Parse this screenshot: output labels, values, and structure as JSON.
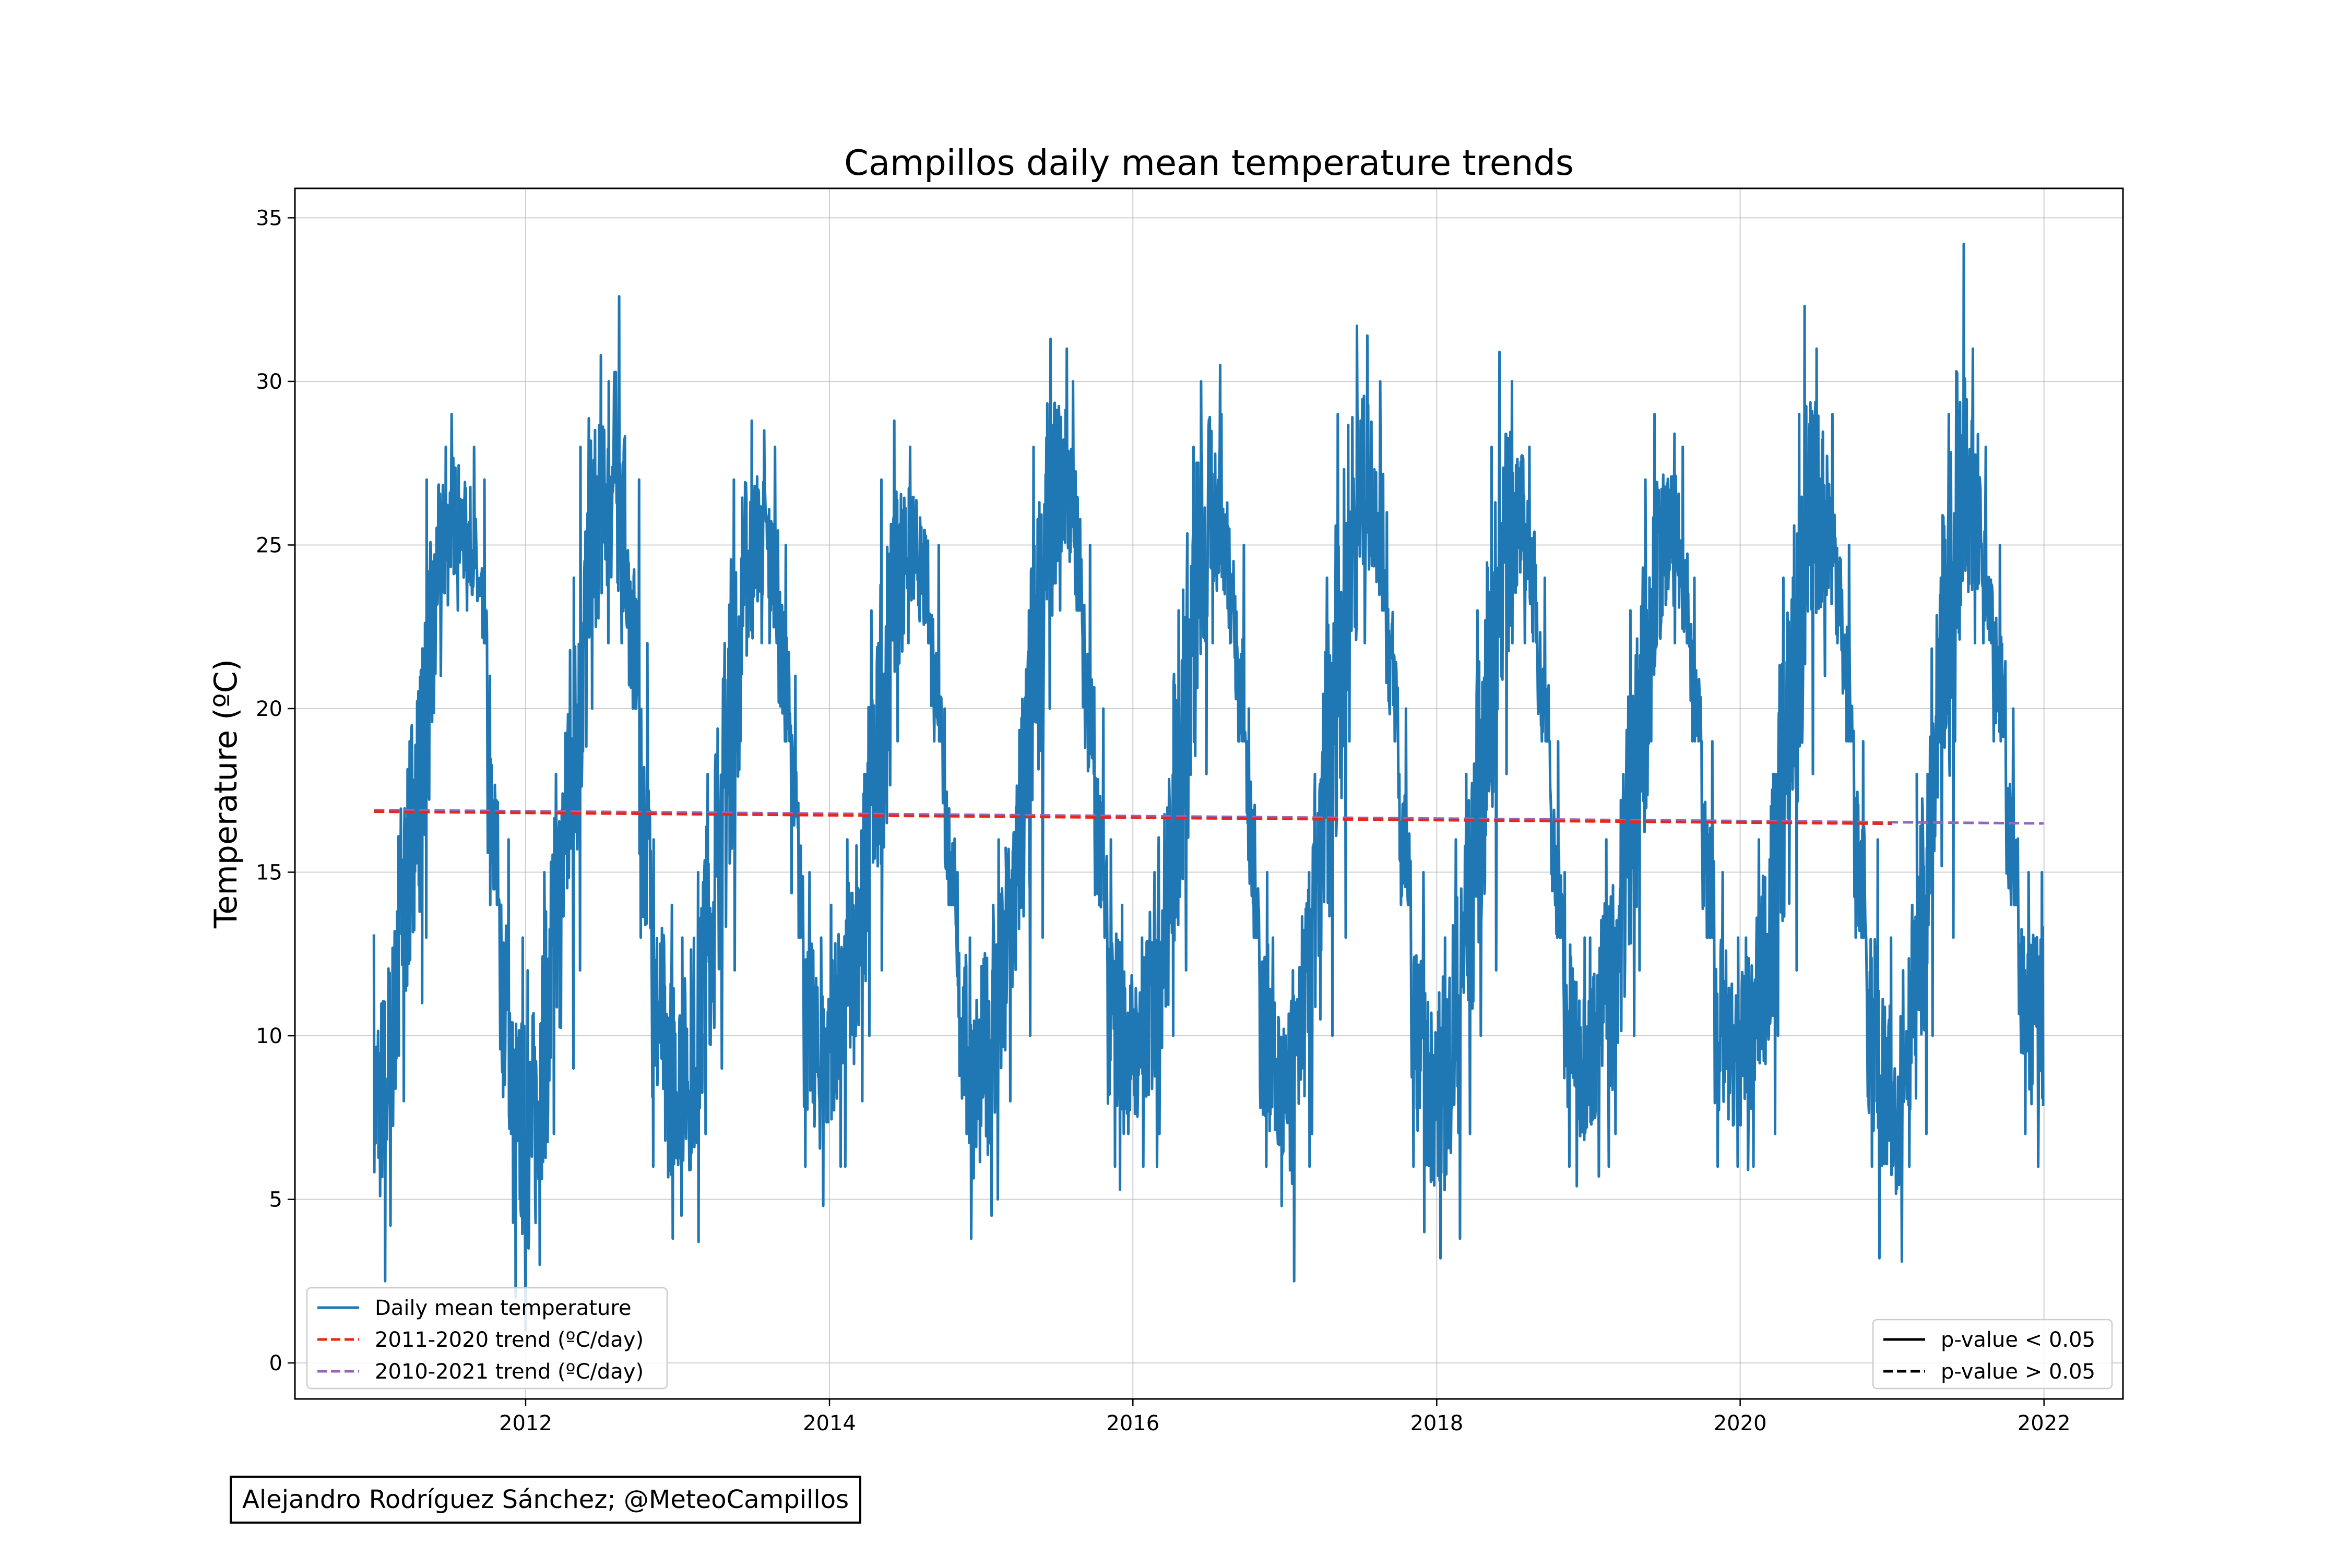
{
  "chart_data": {
    "type": "line",
    "title": "Campillos daily mean temperature trends",
    "ylabel": "Temperature (ºC)",
    "xlabel": "",
    "xlim": [
      "2010-06-25",
      "2022-07-10"
    ],
    "ylim": [
      -1.1,
      35.9
    ],
    "x_ticks": [
      "2012",
      "2014",
      "2016",
      "2018",
      "2020",
      "2022"
    ],
    "y_ticks": [
      "0",
      "5",
      "10",
      "15",
      "20",
      "25",
      "30",
      "35"
    ],
    "grid": true,
    "series": [
      {
        "name": "Daily mean temperature",
        "color": "#1f77b4",
        "style": "solid",
        "monthly_envelope": {
          "x": [
            "2011-01",
            "2011-02",
            "2011-03",
            "2011-04",
            "2011-05",
            "2011-06",
            "2011-07",
            "2011-08",
            "2011-09",
            "2011-10",
            "2011-11",
            "2011-12",
            "2012-01",
            "2012-02",
            "2012-03",
            "2012-04",
            "2012-05",
            "2012-06",
            "2012-07",
            "2012-08",
            "2012-09",
            "2012-10",
            "2012-11",
            "2012-12",
            "2013-01",
            "2013-02",
            "2013-03",
            "2013-04",
            "2013-05",
            "2013-06",
            "2013-07",
            "2013-08",
            "2013-09",
            "2013-10",
            "2013-11",
            "2013-12",
            "2014-01",
            "2014-02",
            "2014-03",
            "2014-04",
            "2014-05",
            "2014-06",
            "2014-07",
            "2014-08",
            "2014-09",
            "2014-10",
            "2014-11",
            "2014-12",
            "2015-01",
            "2015-02",
            "2015-03",
            "2015-04",
            "2015-05",
            "2015-06",
            "2015-07",
            "2015-08",
            "2015-09",
            "2015-10",
            "2015-11",
            "2015-12",
            "2016-01",
            "2016-02",
            "2016-03",
            "2016-04",
            "2016-05",
            "2016-06",
            "2016-07",
            "2016-08",
            "2016-09",
            "2016-10",
            "2016-11",
            "2016-12",
            "2017-01",
            "2017-02",
            "2017-03",
            "2017-04",
            "2017-05",
            "2017-06",
            "2017-07",
            "2017-08",
            "2017-09",
            "2017-10",
            "2017-11",
            "2017-12",
            "2018-01",
            "2018-02",
            "2018-03",
            "2018-04",
            "2018-05",
            "2018-06",
            "2018-07",
            "2018-08",
            "2018-09",
            "2018-10",
            "2018-11",
            "2018-12",
            "2019-01",
            "2019-02",
            "2019-03",
            "2019-04",
            "2019-05",
            "2019-06",
            "2019-07",
            "2019-08",
            "2019-09",
            "2019-10",
            "2019-11",
            "2019-12",
            "2020-01",
            "2020-02",
            "2020-03",
            "2020-04",
            "2020-05",
            "2020-06",
            "2020-07",
            "2020-08",
            "2020-09",
            "2020-10",
            "2020-11",
            "2020-12",
            "2021-01",
            "2021-02",
            "2021-03",
            "2021-04",
            "2021-05",
            "2021-06",
            "2021-07",
            "2021-08",
            "2021-09",
            "2021-10",
            "2021-11",
            "2021-12"
          ],
          "min": [
            2.5,
            4.2,
            8,
            11,
            13,
            21,
            23,
            23,
            22,
            14,
            7,
            2,
            1,
            3,
            7,
            9,
            12,
            20,
            22,
            22,
            20,
            13,
            6,
            3.8,
            4.5,
            3.7,
            7,
            9,
            12,
            19,
            22,
            22,
            19,
            13,
            6,
            4.8,
            6,
            6,
            8,
            10,
            12,
            19,
            22,
            22,
            19,
            14,
            7,
            3.8,
            4.5,
            5,
            8,
            10,
            13,
            20,
            23,
            23,
            18,
            13,
            6,
            5.3,
            6,
            6,
            7,
            10,
            12,
            18,
            22,
            22,
            19,
            13,
            6,
            4.8,
            2.5,
            6,
            7,
            10,
            13,
            19,
            22,
            23,
            19,
            14,
            6,
            4,
            3.2,
            3.8,
            7,
            10,
            12,
            18,
            22,
            22,
            19,
            13,
            6,
            5.4,
            5.7,
            6,
            7,
            10,
            12,
            19,
            22,
            22,
            19,
            13,
            6,
            6,
            5.9,
            6,
            7,
            10,
            12,
            18,
            21,
            22,
            19,
            13,
            6,
            3.2,
            3.1,
            6,
            7,
            10,
            13,
            19,
            22,
            22,
            19,
            14,
            7,
            6
          ],
          "max": [
            13.1,
            13.8,
            19,
            22,
            27,
            28,
            29,
            28,
            27,
            21,
            16,
            13,
            12,
            15,
            18,
            24,
            28,
            30.8,
            30,
            32.6,
            27,
            22,
            16,
            14,
            13,
            15,
            18,
            22,
            27,
            28.8,
            28.5,
            28,
            25,
            21,
            15,
            13,
            14,
            16,
            18,
            23,
            27,
            28.8,
            28,
            27,
            25,
            20,
            15,
            13,
            14,
            16,
            18,
            23,
            28,
            31.3,
            31,
            30,
            25,
            20,
            16,
            14,
            13,
            15,
            18,
            23,
            28,
            30,
            30.5,
            29,
            25,
            20,
            15,
            13,
            12,
            15,
            18,
            24,
            29,
            31.7,
            31.4,
            30,
            26,
            20,
            15,
            13,
            13,
            16,
            18,
            23,
            28,
            30.9,
            30,
            28,
            24,
            19,
            15,
            13,
            13,
            16,
            18,
            23,
            27,
            29,
            28.4,
            28,
            24,
            19,
            15,
            13,
            13,
            16,
            18,
            24,
            29,
            32.3,
            31,
            29,
            25,
            19,
            16,
            13,
            12,
            14,
            18,
            24,
            29,
            34.2,
            31,
            28,
            25,
            20,
            15,
            15
          ]
        }
      },
      {
        "name": "2011-2020 trend (ºC/day)",
        "color": "#e8261a",
        "style": "dashed",
        "x": [
          "2011-01-01",
          "2020-12-31"
        ],
        "y": [
          16.85,
          16.48
        ]
      },
      {
        "name": "2010-2021 trend (ºC/day)",
        "color": "#9467bd",
        "style": "dashed",
        "x": [
          "2011-01-01",
          "2021-12-31"
        ],
        "y": [
          16.9,
          16.49
        ]
      }
    ],
    "legend_left": {
      "placement": "lower-left",
      "entries": [
        {
          "label": "Daily mean temperature",
          "color": "#1f77b4",
          "style": "solid"
        },
        {
          "label": "2011-2020 trend (ºC/day)",
          "color": "#e8261a",
          "style": "dashed"
        },
        {
          "label": "2010-2021 trend (ºC/day)",
          "color": "#9467bd",
          "style": "dashed"
        }
      ]
    },
    "legend_right": {
      "placement": "lower-right",
      "entries": [
        {
          "label": "p-value < 0.05",
          "color": "#000000",
          "style": "solid"
        },
        {
          "label": "p-value > 0.05",
          "color": "#000000",
          "style": "dashed"
        }
      ]
    }
  },
  "credit": "Alejandro Rodríguez Sánchez; @MeteoCampillos"
}
